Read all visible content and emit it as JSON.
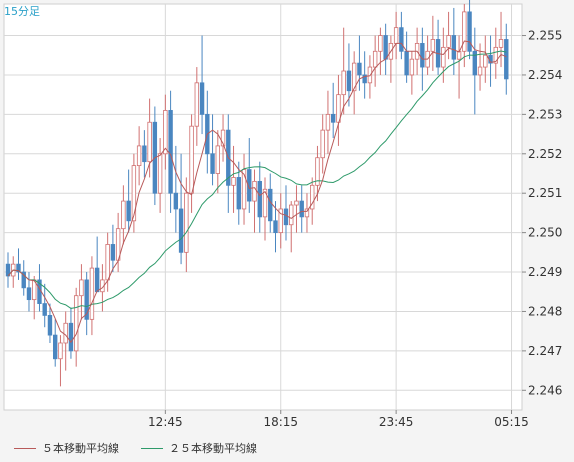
{
  "timeframe_label": "15分足",
  "colors": {
    "up": "#d07070",
    "down": "#4a86c0",
    "ma5": "#b85a5a",
    "ma25": "#2e9a6a",
    "grid": "#d8d8d8",
    "panel": "#ffffff"
  },
  "chart_data": {
    "type": "candlestick",
    "title": "",
    "x_tick_labels": [
      "12:45",
      "18:15",
      "23:45",
      "05:15"
    ],
    "x_tick_index": [
      30,
      52,
      74,
      96
    ],
    "y_ticks": [
      2.246,
      2.247,
      2.248,
      2.249,
      2.25,
      2.251,
      2.252,
      2.253,
      2.254,
      2.255
    ],
    "ylim": [
      2.2455,
      2.2558
    ],
    "grid": true,
    "legend": "bottom-left",
    "series": [
      {
        "name": "５本移動平均線",
        "color": "#b85a5a"
      },
      {
        "name": "２５本移動平均線",
        "color": "#2e9a6a"
      }
    ],
    "candles": [
      [
        2.2492,
        2.2495,
        2.2486,
        2.2489
      ],
      [
        2.2489,
        2.2494,
        2.2486,
        2.2492
      ],
      [
        2.2492,
        2.2496,
        2.2488,
        2.249
      ],
      [
        2.249,
        2.2493,
        2.2484,
        2.2486
      ],
      [
        2.2486,
        2.249,
        2.248,
        2.2483
      ],
      [
        2.2483,
        2.2489,
        2.2478,
        2.2488
      ],
      [
        2.2488,
        2.2492,
        2.248,
        2.2482
      ],
      [
        2.2482,
        2.2487,
        2.2476,
        2.2479
      ],
      [
        2.2479,
        2.2482,
        2.2472,
        2.2474
      ],
      [
        2.2474,
        2.2478,
        2.2466,
        2.2468
      ],
      [
        2.2468,
        2.2474,
        2.2461,
        2.2472
      ],
      [
        2.2472,
        2.248,
        2.2465,
        2.2477
      ],
      [
        2.2477,
        2.2481,
        2.2468,
        2.247
      ],
      [
        2.247,
        2.2486,
        2.2466,
        2.2484
      ],
      [
        2.2484,
        2.2492,
        2.2478,
        2.2488
      ],
      [
        2.2488,
        2.249,
        2.2474,
        2.2478
      ],
      [
        2.2478,
        2.2494,
        2.2474,
        2.2491
      ],
      [
        2.2491,
        2.2499,
        2.2485,
        2.2485
      ],
      [
        2.2485,
        2.2492,
        2.248,
        2.2488
      ],
      [
        2.2488,
        2.25,
        2.2485,
        2.2497
      ],
      [
        2.2497,
        2.2502,
        2.249,
        2.2493
      ],
      [
        2.2493,
        2.2505,
        2.249,
        2.2501
      ],
      [
        2.2501,
        2.2512,
        2.2497,
        2.2508
      ],
      [
        2.2508,
        2.2516,
        2.25,
        2.2503
      ],
      [
        2.2503,
        2.252,
        2.25,
        2.2517
      ],
      [
        2.2517,
        2.2527,
        2.2512,
        2.2522
      ],
      [
        2.2522,
        2.2526,
        2.2514,
        2.2518
      ],
      [
        2.2518,
        2.2534,
        2.2514,
        2.2528
      ],
      [
        2.2528,
        2.2532,
        2.2507,
        2.251
      ],
      [
        2.251,
        2.2524,
        2.2505,
        2.252
      ],
      [
        2.252,
        2.2535,
        2.2516,
        2.2531
      ],
      [
        2.2531,
        2.2536,
        2.2505,
        2.251
      ],
      [
        2.251,
        2.2522,
        2.25,
        2.2506
      ],
      [
        2.2506,
        2.252,
        2.2492,
        2.2495
      ],
      [
        2.2495,
        2.2514,
        2.249,
        2.251
      ],
      [
        2.251,
        2.253,
        2.2505,
        2.2527
      ],
      [
        2.2527,
        2.2542,
        2.2522,
        2.2538
      ],
      [
        2.2538,
        2.255,
        2.2525,
        2.253
      ],
      [
        2.253,
        2.2536,
        2.2515,
        2.252
      ],
      [
        2.252,
        2.253,
        2.2512,
        2.2515
      ],
      [
        2.2515,
        2.2526,
        2.251,
        2.2522
      ],
      [
        2.2522,
        2.253,
        2.2518,
        2.2526
      ],
      [
        2.2526,
        2.253,
        2.2505,
        2.2512
      ],
      [
        2.2512,
        2.2522,
        2.2505,
        2.2514
      ],
      [
        2.2514,
        2.2518,
        2.2502,
        2.2506
      ],
      [
        2.2506,
        2.252,
        2.2502,
        2.2516
      ],
      [
        2.2516,
        2.2524,
        2.2505,
        2.2508
      ],
      [
        2.2508,
        2.2516,
        2.25,
        2.2513
      ],
      [
        2.2513,
        2.2518,
        2.25,
        2.2504
      ],
      [
        2.2504,
        2.2514,
        2.2498,
        2.2511
      ],
      [
        2.2511,
        2.2515,
        2.25,
        2.2503
      ],
      [
        2.2503,
        2.2508,
        2.2495,
        2.25
      ],
      [
        2.25,
        2.251,
        2.2496,
        2.2506
      ],
      [
        2.2506,
        2.2512,
        2.2498,
        2.2502
      ],
      [
        2.2502,
        2.2508,
        2.2495,
        2.2507
      ],
      [
        2.2507,
        2.2512,
        2.25,
        2.2508
      ],
      [
        2.2508,
        2.2512,
        2.25,
        2.2504
      ],
      [
        2.2504,
        2.251,
        2.25,
        2.2506
      ],
      [
        2.2506,
        2.2514,
        2.2502,
        2.2512
      ],
      [
        2.2512,
        2.2522,
        2.2508,
        2.2519
      ],
      [
        2.2519,
        2.253,
        2.2515,
        2.2526
      ],
      [
        2.2526,
        2.2536,
        2.252,
        2.253
      ],
      [
        2.253,
        2.2538,
        2.2524,
        2.2528
      ],
      [
        2.2528,
        2.254,
        2.2522,
        2.2535
      ],
      [
        2.2535,
        2.2552,
        2.253,
        2.2541
      ],
      [
        2.2541,
        2.2548,
        2.2532,
        2.2536
      ],
      [
        2.2536,
        2.2546,
        2.253,
        2.2543
      ],
      [
        2.2543,
        2.255,
        2.2536,
        2.254
      ],
      [
        2.254,
        2.2546,
        2.2534,
        2.2538
      ],
      [
        2.2538,
        2.2545,
        2.2534,
        2.2542
      ],
      [
        2.2542,
        2.255,
        2.2537,
        2.2546
      ],
      [
        2.2546,
        2.2552,
        2.254,
        2.255
      ],
      [
        2.255,
        2.2553,
        2.254,
        2.2544
      ],
      [
        2.2544,
        2.255,
        2.2538,
        2.2548
      ],
      [
        2.2548,
        2.2556,
        2.2544,
        2.2552
      ],
      [
        2.2552,
        2.2556,
        2.2544,
        2.2546
      ],
      [
        2.2546,
        2.2551,
        2.2538,
        2.254
      ],
      [
        2.254,
        2.2546,
        2.2535,
        2.2544
      ],
      [
        2.2544,
        2.2552,
        2.254,
        2.2548
      ],
      [
        2.2548,
        2.2552,
        2.2536,
        2.2542
      ],
      [
        2.2542,
        2.255,
        2.254,
        2.2546
      ],
      [
        2.2546,
        2.2555,
        2.2541,
        2.2549
      ],
      [
        2.2549,
        2.2554,
        2.254,
        2.2542
      ],
      [
        2.2542,
        2.2552,
        2.2538,
        2.2547
      ],
      [
        2.2547,
        2.2556,
        2.2544,
        2.255
      ],
      [
        2.255,
        2.2557,
        2.254,
        2.2544
      ],
      [
        2.2544,
        2.255,
        2.2534,
        2.2546
      ],
      [
        2.2546,
        2.2558,
        2.2542,
        2.2556
      ],
      [
        2.2556,
        2.2562,
        2.2544,
        2.2546
      ],
      [
        2.2546,
        2.2552,
        2.253,
        2.254
      ],
      [
        2.254,
        2.2548,
        2.2536,
        2.2542
      ],
      [
        2.2542,
        2.255,
        2.2538,
        2.2545
      ],
      [
        2.2545,
        2.255,
        2.2537,
        2.2543
      ],
      [
        2.2543,
        2.2552,
        2.2539,
        2.2547
      ],
      [
        2.2547,
        2.2556,
        2.2542,
        2.2549
      ],
      [
        2.2549,
        2.2553,
        2.2535,
        2.2539
      ]
    ]
  }
}
